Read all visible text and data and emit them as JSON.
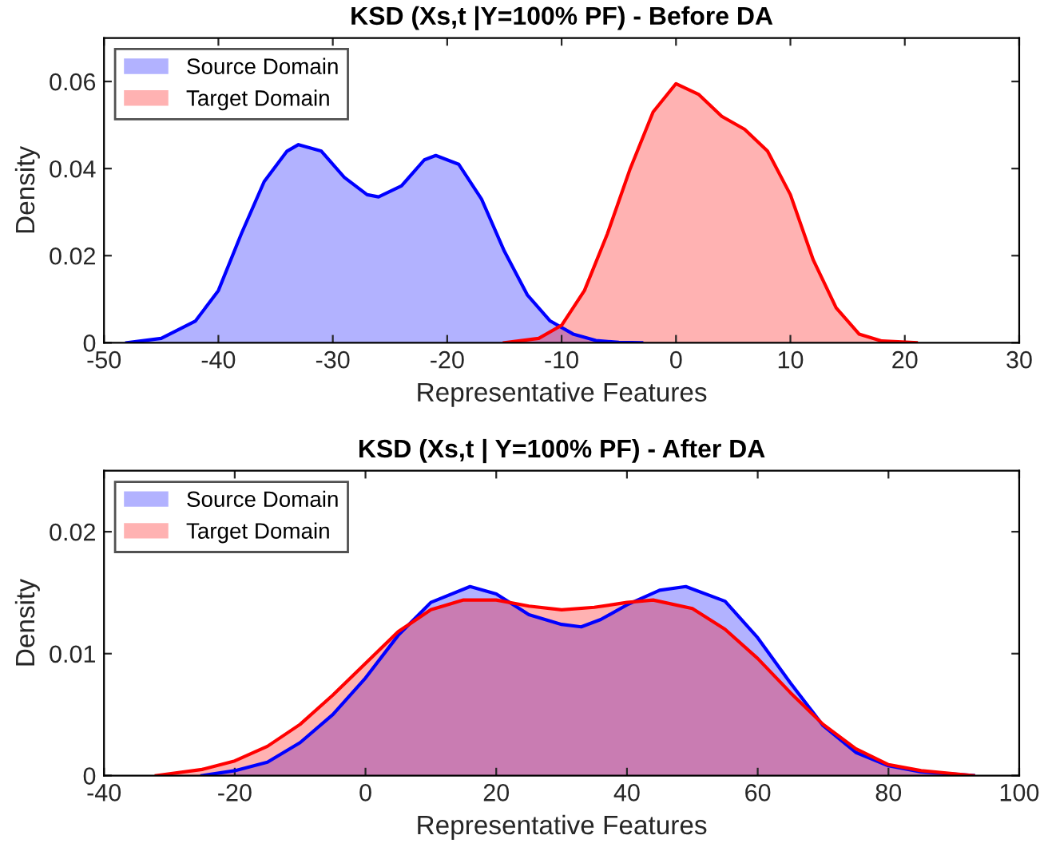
{
  "chart_data": [
    {
      "type": "area",
      "title": "KSD (Xs,t |Y=100% PF) - Before DA",
      "xlabel": "Representative Features",
      "ylabel": "Density",
      "xlim": [
        -50,
        30
      ],
      "xticks": [
        -50,
        -40,
        -30,
        -20,
        -10,
        0,
        10,
        20,
        30
      ],
      "ylim": [
        0,
        0.07
      ],
      "yticks": [
        0,
        0.02,
        0.04,
        0.06
      ],
      "grid": false,
      "legend": "top left",
      "series": [
        {
          "name": "Source Domain",
          "color": "#0000ff",
          "x": [
            -48,
            -45,
            -42,
            -40,
            -38,
            -36,
            -34,
            -33,
            -31,
            -29,
            -27,
            -26,
            -24,
            -22,
            -21,
            -19,
            -17,
            -15,
            -13,
            -11,
            -9,
            -7,
            -5,
            -3
          ],
          "values": [
            0,
            0.001,
            0.005,
            0.012,
            0.025,
            0.037,
            0.044,
            0.0455,
            0.044,
            0.038,
            0.034,
            0.0335,
            0.036,
            0.042,
            0.043,
            0.041,
            0.033,
            0.021,
            0.011,
            0.005,
            0.002,
            0.0005,
            0.0001,
            0
          ]
        },
        {
          "name": "Target Domain",
          "color": "#ff0000",
          "x": [
            -15,
            -12,
            -10,
            -8,
            -6,
            -4,
            -2,
            0,
            2,
            4,
            6,
            8,
            10,
            12,
            14,
            16,
            18,
            21
          ],
          "values": [
            0,
            0.001,
            0.004,
            0.012,
            0.025,
            0.04,
            0.053,
            0.0595,
            0.057,
            0.052,
            0.049,
            0.044,
            0.034,
            0.019,
            0.008,
            0.002,
            0.0004,
            0
          ]
        }
      ]
    },
    {
      "type": "area",
      "title": "KSD (Xs,t | Y=100% PF) - After DA",
      "xlabel": "Representative Features",
      "ylabel": "Density",
      "xlim": [
        -40,
        100
      ],
      "xticks": [
        -40,
        -20,
        0,
        20,
        40,
        60,
        80,
        100
      ],
      "ylim": [
        0,
        0.025
      ],
      "yticks": [
        0,
        0.01,
        0.02
      ],
      "grid": false,
      "legend": "top left",
      "series": [
        {
          "name": "Source Domain",
          "color": "#0000ff",
          "x": [
            -25,
            -20,
            -15,
            -10,
            -5,
            0,
            5,
            10,
            16,
            20,
            25,
            30,
            33,
            36,
            40,
            45,
            49,
            55,
            60,
            65,
            70,
            75,
            80,
            85,
            93
          ],
          "values": [
            0,
            0.0004,
            0.0011,
            0.0027,
            0.005,
            0.008,
            0.0115,
            0.0142,
            0.0155,
            0.0149,
            0.0132,
            0.0124,
            0.0122,
            0.0128,
            0.014,
            0.0152,
            0.0155,
            0.0143,
            0.0113,
            0.0076,
            0.0041,
            0.0019,
            0.0008,
            0.0003,
            0
          ]
        },
        {
          "name": "Target Domain",
          "color": "#ff0000",
          "x": [
            -32,
            -25,
            -20,
            -15,
            -10,
            -5,
            0,
            5,
            10,
            15,
            20,
            25,
            30,
            35,
            40,
            44,
            50,
            55,
            60,
            65,
            70,
            75,
            80,
            85,
            93
          ],
          "values": [
            0,
            0.0005,
            0.0012,
            0.0024,
            0.0042,
            0.0066,
            0.0092,
            0.0118,
            0.0136,
            0.0144,
            0.0144,
            0.0139,
            0.0136,
            0.0138,
            0.0142,
            0.0144,
            0.0137,
            0.012,
            0.0096,
            0.0068,
            0.0042,
            0.0022,
            0.0009,
            0.0004,
            0
          ]
        }
      ]
    }
  ]
}
